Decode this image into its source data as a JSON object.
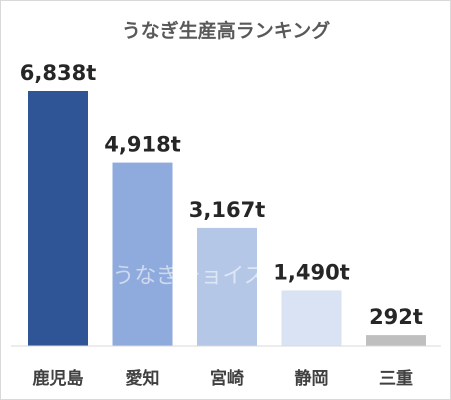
{
  "chart_data": {
    "type": "bar",
    "title": "うなぎ生産高ランキング",
    "categories": [
      "鹿児島",
      "愛知",
      "宮崎",
      "静岡",
      "三重"
    ],
    "values": [
      6838,
      4918,
      3167,
      1490,
      292
    ],
    "data_labels": [
      "6,838t",
      "4,918t",
      "3,167t",
      "1,490t",
      "292t"
    ],
    "unit": "t",
    "colors": [
      "#2f5597",
      "#8faadc",
      "#b4c7e7",
      "#dae3f3",
      "#bfbfbf"
    ],
    "ylim": [
      0,
      6838
    ],
    "grid": false,
    "legend": "none"
  },
  "watermark": "うなぎチョイス"
}
